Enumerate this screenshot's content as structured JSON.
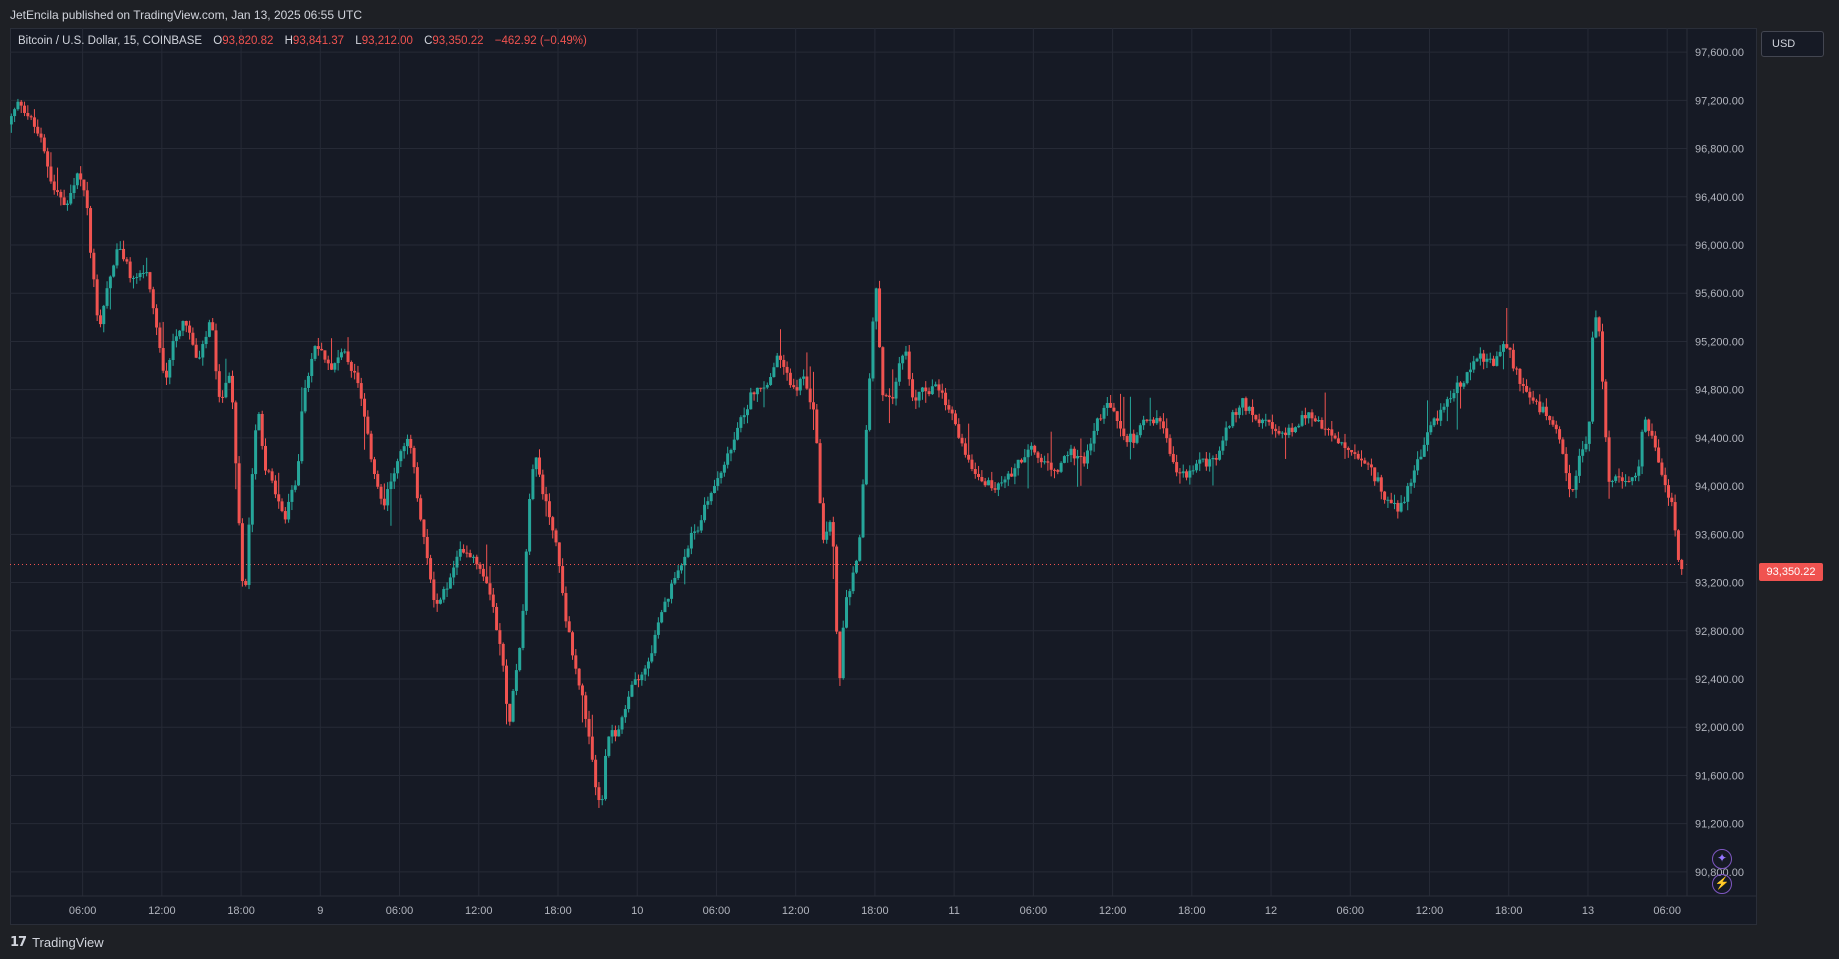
{
  "header": {
    "published": "JetEncila published on TradingView.com, Jan 13, 2025 06:55 UTC"
  },
  "legend": {
    "symbol": "Bitcoin / U.S. Dollar, 15, COINBASE",
    "o_label": "O",
    "o_value": "93,820.82",
    "h_label": "H",
    "h_value": "93,841.37",
    "l_label": "L",
    "l_value": "93,212.00",
    "c_label": "C",
    "c_value": "93,350.22",
    "change": "−462.92 (−0.49%)"
  },
  "currency_button": "USD",
  "last_price_label": "93,350.22",
  "colors": {
    "up": "#26a69a",
    "down": "#f05350",
    "background": "#161a25",
    "grid": "#262a36",
    "accent": "#7e57c2"
  },
  "icons": {
    "ai_button": "sparkle-icon",
    "alert_button": "lightning-icon"
  },
  "footer": {
    "brand": "TradingView",
    "logo_icon": "tradingview-logo-icon"
  },
  "chart_data": {
    "type": "candlestick",
    "title": "Bitcoin / U.S. Dollar, 15, COINBASE",
    "y_ticks": [
      "97,600.00",
      "97,200.00",
      "96,800.00",
      "96,400.00",
      "96,000.00",
      "95,600.00",
      "95,200.00",
      "94,800.00",
      "94,400.00",
      "94,000.00",
      "93,600.00",
      "93,200.00",
      "92,800.00",
      "92,400.00",
      "92,000.00",
      "91,600.00",
      "91,200.00",
      "90,800.00"
    ],
    "y_tick_values": [
      97600,
      97200,
      96800,
      96400,
      96000,
      95600,
      95200,
      94800,
      94400,
      94000,
      93600,
      93200,
      92800,
      92400,
      92000,
      91600,
      91200,
      90800
    ],
    "x_ticks": [
      "06:00",
      "12:00",
      "18:00",
      "9",
      "06:00",
      "12:00",
      "18:00",
      "10",
      "06:00",
      "12:00",
      "18:00",
      "11",
      "06:00",
      "12:00",
      "18:00",
      "12",
      "06:00",
      "12:00",
      "18:00",
      "13",
      "06:00"
    ],
    "x_tick_hours": [
      6,
      12,
      18,
      24,
      30,
      36,
      42,
      48,
      54,
      60,
      66,
      72,
      78,
      84,
      90,
      96,
      102,
      108,
      114,
      120,
      126
    ],
    "ylim": [
      90600,
      97800
    ],
    "xlim_hours": [
      0.5,
      127.5
    ],
    "last_price": 93350.22,
    "price_path": [
      [
        0.6,
        97000
      ],
      [
        1.5,
        97200
      ],
      [
        3,
        96900
      ],
      [
        4,
        96500
      ],
      [
        5,
        96300
      ],
      [
        6,
        96600
      ],
      [
        6.5,
        96400
      ],
      [
        7,
        95800
      ],
      [
        7.5,
        95300
      ],
      [
        8,
        95600
      ],
      [
        9,
        96000
      ],
      [
        10,
        95700
      ],
      [
        11,
        95800
      ],
      [
        12,
        95200
      ],
      [
        12.5,
        94800
      ],
      [
        13,
        95200
      ],
      [
        14,
        95400
      ],
      [
        15,
        95000
      ],
      [
        16,
        95400
      ],
      [
        16.5,
        94700
      ],
      [
        17.5,
        94900
      ],
      [
        18.2,
        93500
      ],
      [
        18.5,
        93000
      ],
      [
        19,
        94000
      ],
      [
        19.5,
        94700
      ],
      [
        20,
        94200
      ],
      [
        21,
        93900
      ],
      [
        21.5,
        93700
      ],
      [
        22.5,
        94100
      ],
      [
        23,
        94800
      ],
      [
        24,
        95200
      ],
      [
        25,
        95000
      ],
      [
        26,
        95100
      ],
      [
        27,
        94900
      ],
      [
        28,
        94300
      ],
      [
        29,
        93800
      ],
      [
        30,
        94200
      ],
      [
        31,
        94400
      ],
      [
        32,
        93600
      ],
      [
        33,
        93000
      ],
      [
        34,
        93200
      ],
      [
        35,
        93500
      ],
      [
        36,
        93400
      ],
      [
        37,
        93200
      ],
      [
        38,
        92600
      ],
      [
        38.5,
        92000
      ],
      [
        39.5,
        92800
      ],
      [
        40,
        93800
      ],
      [
        40.5,
        94300
      ],
      [
        41,
        94000
      ],
      [
        42,
        93600
      ],
      [
        43,
        92800
      ],
      [
        44,
        92300
      ],
      [
        45,
        91600
      ],
      [
        45.5,
        91300
      ],
      [
        46,
        91900
      ],
      [
        47,
        92000
      ],
      [
        48,
        92400
      ],
      [
        49,
        92500
      ],
      [
        50,
        92900
      ],
      [
        51,
        93200
      ],
      [
        52,
        93500
      ],
      [
        53,
        93700
      ],
      [
        54,
        94000
      ],
      [
        55,
        94200
      ],
      [
        56,
        94500
      ],
      [
        57,
        94800
      ],
      [
        58,
        94800
      ],
      [
        59,
        95100
      ],
      [
        60,
        94800
      ],
      [
        61,
        94900
      ],
      [
        61.8,
        94500
      ],
      [
        62.3,
        93500
      ],
      [
        63,
        93800
      ],
      [
        63.5,
        92300
      ],
      [
        64,
        93000
      ],
      [
        65,
        93400
      ],
      [
        65.5,
        94300
      ],
      [
        66.3,
        95700
      ],
      [
        66.8,
        94800
      ],
      [
        67.5,
        94700
      ],
      [
        68.5,
        95200
      ],
      [
        69,
        94700
      ],
      [
        70,
        94800
      ],
      [
        71,
        94800
      ],
      [
        72,
        94600
      ],
      [
        73,
        94300
      ],
      [
        74,
        94100
      ],
      [
        75,
        94000
      ],
      [
        76,
        94000
      ],
      [
        77,
        94200
      ],
      [
        78,
        94300
      ],
      [
        79,
        94200
      ],
      [
        80,
        94100
      ],
      [
        81,
        94300
      ],
      [
        82,
        94200
      ],
      [
        83,
        94500
      ],
      [
        84,
        94700
      ],
      [
        85,
        94400
      ],
      [
        86,
        94400
      ],
      [
        87,
        94600
      ],
      [
        88,
        94500
      ],
      [
        89,
        94100
      ],
      [
        90,
        94100
      ],
      [
        91,
        94200
      ],
      [
        92,
        94200
      ],
      [
        93,
        94500
      ],
      [
        94,
        94700
      ],
      [
        95,
        94600
      ],
      [
        96,
        94500
      ],
      [
        97,
        94400
      ],
      [
        98,
        94500
      ],
      [
        99,
        94600
      ],
      [
        100,
        94500
      ],
      [
        101,
        94400
      ],
      [
        102,
        94300
      ],
      [
        103,
        94200
      ],
      [
        104,
        94100
      ],
      [
        105,
        93900
      ],
      [
        106,
        93800
      ],
      [
        107,
        94100
      ],
      [
        108,
        94400
      ],
      [
        109,
        94600
      ],
      [
        110,
        94800
      ],
      [
        111,
        94900
      ],
      [
        112,
        95100
      ],
      [
        113,
        95000
      ],
      [
        114,
        95200
      ],
      [
        115,
        94900
      ],
      [
        116,
        94700
      ],
      [
        117,
        94600
      ],
      [
        118,
        94400
      ],
      [
        119,
        93900
      ],
      [
        119.5,
        94200
      ],
      [
        120.3,
        94400
      ],
      [
        120.7,
        95500
      ],
      [
        121.2,
        95200
      ],
      [
        121.8,
        94000
      ],
      [
        122.3,
        94100
      ],
      [
        123,
        94000
      ],
      [
        124,
        94100
      ],
      [
        124.5,
        94600
      ],
      [
        125.3,
        94300
      ],
      [
        126,
        94000
      ],
      [
        126.6,
        93900
      ],
      [
        127.1,
        93350
      ]
    ]
  }
}
